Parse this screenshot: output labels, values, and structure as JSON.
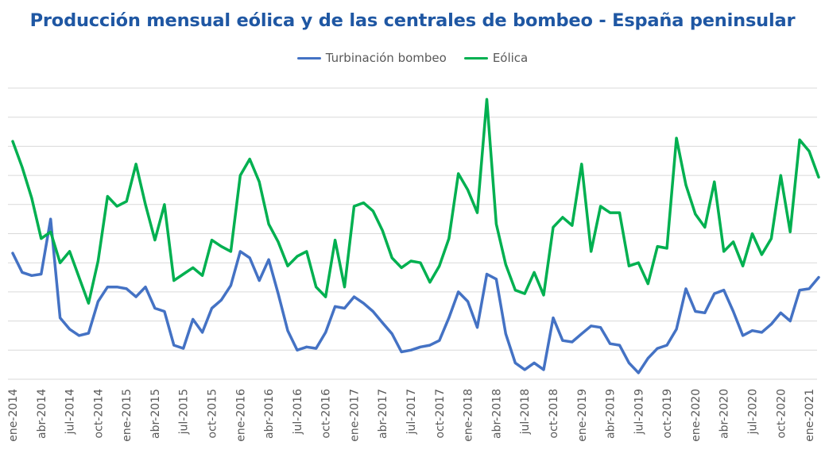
{
  "chart_data": {
    "type": "line",
    "title": "Producción mensual eólica y de las centrales de bombeo - España peninsular",
    "xlabel": "",
    "ylabel": "",
    "y_scale_note": "no numeric axis printed; values expressed as % of plot height above bottom gridline",
    "ylim": [
      0,
      100
    ],
    "grid": true,
    "legend_position": "top-center",
    "x": [
      "ene-2014",
      "feb-2014",
      "mar-2014",
      "abr-2014",
      "may-2014",
      "jun-2014",
      "jul-2014",
      "ago-2014",
      "sep-2014",
      "oct-2014",
      "nov-2014",
      "dic-2014",
      "ene-2015",
      "feb-2015",
      "mar-2015",
      "abr-2015",
      "may-2015",
      "jun-2015",
      "jul-2015",
      "ago-2015",
      "sep-2015",
      "oct-2015",
      "nov-2015",
      "dic-2015",
      "ene-2016",
      "feb-2016",
      "mar-2016",
      "abr-2016",
      "may-2016",
      "jun-2016",
      "jul-2016",
      "ago-2016",
      "sep-2016",
      "oct-2016",
      "nov-2016",
      "dic-2016",
      "ene-2017",
      "feb-2017",
      "mar-2017",
      "abr-2017",
      "may-2017",
      "jun-2017",
      "jul-2017",
      "ago-2017",
      "sep-2017",
      "oct-2017",
      "nov-2017",
      "dic-2017",
      "ene-2018",
      "feb-2018",
      "mar-2018",
      "abr-2018",
      "may-2018",
      "jun-2018",
      "jul-2018",
      "ago-2018",
      "sep-2018",
      "oct-2018",
      "nov-2018",
      "dic-2018",
      "ene-2019",
      "feb-2019",
      "mar-2019",
      "abr-2019",
      "may-2019",
      "jun-2019",
      "jul-2019",
      "ago-2019",
      "sep-2019",
      "oct-2019",
      "nov-2019",
      "dic-2019",
      "ene-2020",
      "feb-2020",
      "mar-2020",
      "abr-2020",
      "may-2020",
      "jun-2020",
      "jul-2020",
      "ago-2020",
      "sep-2020",
      "oct-2020",
      "nov-2020",
      "dic-2020",
      "ene-2021",
      "feb-2021"
    ],
    "tick_labels": [
      "ene-2014",
      "abr-2014",
      "jul-2014",
      "oct-2014",
      "ene-2015",
      "abr-2015",
      "jul-2015",
      "oct-2015",
      "ene-2016",
      "abr-2016",
      "jul-2016",
      "oct-2016",
      "ene-2017",
      "abr-2017",
      "jul-2017",
      "oct-2017",
      "ene-2018",
      "abr-2018",
      "jul-2018",
      "oct-2018",
      "ene-2019",
      "abr-2019",
      "jul-2019",
      "oct-2019",
      "ene-2020",
      "abr-2020",
      "jul-2020",
      "oct-2020",
      "ene-2021"
    ],
    "series": [
      {
        "name": "Turbinación bombeo",
        "color": "#4472c4",
        "values": [
          43.3,
          36.7,
          35.6,
          36.1,
          55.0,
          21.1,
          17.2,
          15.0,
          15.8,
          26.7,
          31.7,
          31.7,
          31.1,
          28.3,
          31.7,
          24.4,
          23.3,
          11.7,
          10.6,
          20.6,
          16.1,
          24.4,
          27.2,
          32.2,
          43.9,
          41.7,
          33.9,
          41.1,
          29.4,
          16.7,
          10.0,
          11.1,
          10.6,
          16.1,
          25.0,
          24.4,
          28.3,
          26.1,
          23.3,
          19.4,
          15.6,
          9.4,
          10.0,
          11.1,
          11.7,
          13.3,
          21.1,
          30.0,
          26.7,
          17.8,
          36.1,
          34.4,
          15.6,
          5.6,
          3.3,
          5.6,
          3.3,
          21.1,
          13.3,
          12.8,
          15.6,
          18.3,
          17.8,
          12.2,
          11.7,
          5.6,
          2.2,
          7.2,
          10.6,
          11.7,
          17.2,
          31.1,
          23.3,
          22.8,
          29.4,
          30.6,
          23.3,
          15.0,
          16.7,
          16.1,
          18.9,
          22.8,
          20.0,
          30.6,
          31.1,
          35.0
        ]
      },
      {
        "name": "Eólica",
        "color": "#00b050",
        "values": [
          81.7,
          72.8,
          62.2,
          48.3,
          50.6,
          40.0,
          43.9,
          35.0,
          26.1,
          40.6,
          62.8,
          59.4,
          61.1,
          73.9,
          60.0,
          47.8,
          60.0,
          33.9,
          36.1,
          38.3,
          35.6,
          47.8,
          45.6,
          43.9,
          70.0,
          75.6,
          67.8,
          53.3,
          47.2,
          38.9,
          42.2,
          43.9,
          31.7,
          28.3,
          47.8,
          31.7,
          59.4,
          60.6,
          57.8,
          51.1,
          41.7,
          38.3,
          40.6,
          40.0,
          33.3,
          38.9,
          48.3,
          70.6,
          65.0,
          57.2,
          96.1,
          53.3,
          39.4,
          30.6,
          29.4,
          36.7,
          28.9,
          52.2,
          55.6,
          52.8,
          73.9,
          43.9,
          59.4,
          57.2,
          57.2,
          38.9,
          40.0,
          32.8,
          45.6,
          45.0,
          82.8,
          66.7,
          56.7,
          52.2,
          67.8,
          43.9,
          47.2,
          38.9,
          50.0,
          42.8,
          48.3,
          70.0,
          50.6,
          82.2,
          78.3,
          69.4
        ]
      }
    ]
  }
}
